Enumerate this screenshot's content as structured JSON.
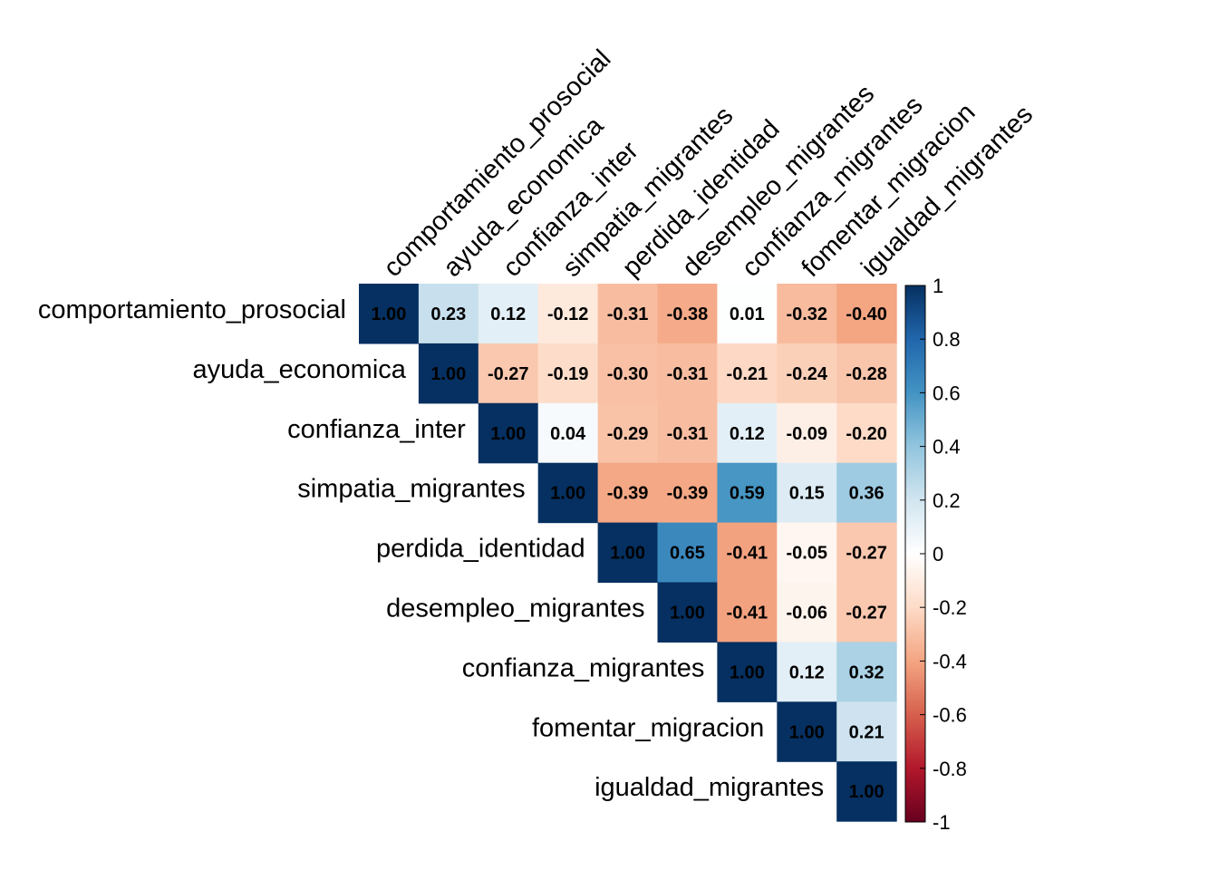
{
  "chart_data": {
    "type": "heatmap",
    "title": "",
    "variables": [
      "comportamiento_prosocial",
      "ayuda_economica",
      "confianza_inter",
      "simpatia_migrantes",
      "perdida_identidad",
      "desempleo_migrantes",
      "confianza_migrantes",
      "fomentar_migracion",
      "igualdad_migrantes"
    ],
    "matrix": [
      [
        1.0,
        0.23,
        0.12,
        -0.12,
        -0.31,
        -0.38,
        0.01,
        -0.32,
        -0.4
      ],
      [
        null,
        1.0,
        -0.27,
        -0.19,
        -0.3,
        -0.31,
        -0.21,
        -0.24,
        -0.28
      ],
      [
        null,
        null,
        1.0,
        0.04,
        -0.29,
        -0.31,
        0.12,
        -0.09,
        -0.2
      ],
      [
        null,
        null,
        null,
        1.0,
        -0.39,
        -0.39,
        0.59,
        0.15,
        0.36
      ],
      [
        null,
        null,
        null,
        null,
        1.0,
        0.65,
        -0.41,
        -0.05,
        -0.27
      ],
      [
        null,
        null,
        null,
        null,
        null,
        1.0,
        -0.41,
        -0.06,
        -0.27
      ],
      [
        null,
        null,
        null,
        null,
        null,
        null,
        1.0,
        0.12,
        0.32
      ],
      [
        null,
        null,
        null,
        null,
        null,
        null,
        null,
        1.0,
        0.21
      ],
      [
        null,
        null,
        null,
        null,
        null,
        null,
        null,
        null,
        1.0
      ]
    ],
    "layout": "upper-triangle",
    "color_scale": {
      "range": [
        -1,
        1
      ],
      "ticks": [
        "1",
        "0.8",
        "0.6",
        "0.4",
        "0.2",
        "0",
        "-0.2",
        "-0.4",
        "-0.6",
        "-0.8",
        "-1"
      ],
      "colors": [
        "#67001F",
        "#B2182B",
        "#D6604D",
        "#F4A582",
        "#FDDBC7",
        "#FFFFFF",
        "#D1E5F0",
        "#92C5DE",
        "#4393C3",
        "#2166AC",
        "#053061"
      ]
    },
    "legend_position": "right"
  }
}
